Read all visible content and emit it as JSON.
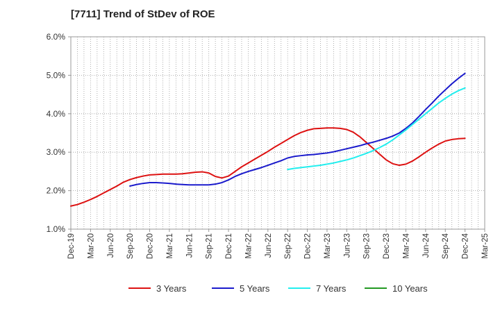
{
  "chart_data": {
    "type": "line",
    "title": "[7711]  Trend of StDev of ROE",
    "xlabel": "",
    "ylabel": "",
    "x_ticks": [
      "Dec-19",
      "Mar-20",
      "Jun-20",
      "Sep-20",
      "Dec-20",
      "Mar-21",
      "Jun-21",
      "Sep-21",
      "Dec-21",
      "Mar-22",
      "Jun-22",
      "Sep-22",
      "Dec-22",
      "Mar-23",
      "Jun-23",
      "Sep-23",
      "Dec-23",
      "Mar-24",
      "Jun-24",
      "Sep-24",
      "Dec-24",
      "Mar-25"
    ],
    "y_ticks": [
      "1.0%",
      "2.0%",
      "3.0%",
      "4.0%",
      "5.0%",
      "6.0%"
    ],
    "ylim": [
      1.0,
      6.0
    ],
    "grid": true,
    "legend_position": "bottom",
    "series": [
      {
        "name": "3 Years",
        "color": "#dd1111",
        "x": [
          "2019-12-31",
          "2020-01-31",
          "2020-02-29",
          "2020-03-31",
          "2020-04-30",
          "2020-05-31",
          "2020-06-30",
          "2020-07-31",
          "2020-08-31",
          "2020-09-30",
          "2020-10-31",
          "2020-11-30",
          "2020-12-31",
          "2021-01-31",
          "2021-02-28",
          "2021-03-31",
          "2021-04-30",
          "2021-05-31",
          "2021-06-30",
          "2021-07-31",
          "2021-08-31",
          "2021-09-30",
          "2021-10-31",
          "2021-11-30",
          "2021-12-31",
          "2022-01-31",
          "2022-02-28",
          "2022-03-31",
          "2022-04-30",
          "2022-05-31",
          "2022-06-30",
          "2022-07-31",
          "2022-08-31",
          "2022-09-30",
          "2022-10-31",
          "2022-11-30",
          "2022-12-31",
          "2023-01-31",
          "2023-02-28",
          "2023-03-31",
          "2023-04-30",
          "2023-05-31",
          "2023-06-30",
          "2023-07-31",
          "2023-08-31",
          "2023-09-30",
          "2023-10-31",
          "2023-11-30",
          "2023-12-31",
          "2024-01-31",
          "2024-02-29",
          "2024-03-31",
          "2024-04-30",
          "2024-05-31",
          "2024-06-30",
          "2024-07-31",
          "2024-08-31",
          "2024-09-30",
          "2024-10-31",
          "2024-11-30",
          "2024-12-31"
        ],
        "y": [
          1.6,
          1.64,
          1.7,
          1.77,
          1.85,
          1.94,
          2.03,
          2.12,
          2.22,
          2.29,
          2.34,
          2.38,
          2.41,
          2.42,
          2.43,
          2.43,
          2.43,
          2.44,
          2.46,
          2.48,
          2.49,
          2.46,
          2.37,
          2.33,
          2.38,
          2.5,
          2.62,
          2.72,
          2.82,
          2.92,
          3.02,
          3.13,
          3.23,
          3.33,
          3.43,
          3.51,
          3.57,
          3.61,
          3.62,
          3.63,
          3.63,
          3.62,
          3.59,
          3.52,
          3.4,
          3.25,
          3.1,
          2.95,
          2.8,
          2.7,
          2.66,
          2.69,
          2.77,
          2.88,
          3.0,
          3.11,
          3.21,
          3.29,
          3.33,
          3.35,
          3.36
        ]
      },
      {
        "name": "5 Years",
        "color": "#1a1acc",
        "x": [
          "2020-09-30",
          "2020-10-31",
          "2020-11-30",
          "2020-12-31",
          "2021-01-31",
          "2021-02-28",
          "2021-03-31",
          "2021-04-30",
          "2021-05-31",
          "2021-06-30",
          "2021-07-31",
          "2021-08-31",
          "2021-09-30",
          "2021-10-31",
          "2021-11-30",
          "2021-12-31",
          "2022-01-31",
          "2022-02-28",
          "2022-03-31",
          "2022-04-30",
          "2022-05-31",
          "2022-06-30",
          "2022-07-31",
          "2022-08-31",
          "2022-09-30",
          "2022-10-31",
          "2022-11-30",
          "2022-12-31",
          "2023-01-31",
          "2023-02-28",
          "2023-03-31",
          "2023-04-30",
          "2023-05-31",
          "2023-06-30",
          "2023-07-31",
          "2023-08-31",
          "2023-09-30",
          "2023-10-31",
          "2023-11-30",
          "2023-12-31",
          "2024-01-31",
          "2024-02-29",
          "2024-03-31",
          "2024-04-30",
          "2024-05-31",
          "2024-06-30",
          "2024-07-31",
          "2024-08-31",
          "2024-09-30",
          "2024-10-31",
          "2024-11-30",
          "2024-12-31"
        ],
        "y": [
          2.12,
          2.16,
          2.19,
          2.21,
          2.21,
          2.2,
          2.19,
          2.17,
          2.16,
          2.15,
          2.15,
          2.15,
          2.15,
          2.17,
          2.21,
          2.28,
          2.37,
          2.44,
          2.5,
          2.55,
          2.6,
          2.66,
          2.72,
          2.78,
          2.85,
          2.89,
          2.91,
          2.93,
          2.94,
          2.96,
          2.98,
          3.01,
          3.05,
          3.09,
          3.13,
          3.17,
          3.22,
          3.26,
          3.31,
          3.36,
          3.42,
          3.5,
          3.62,
          3.76,
          3.93,
          4.11,
          4.28,
          4.46,
          4.62,
          4.78,
          4.92,
          5.05
        ]
      },
      {
        "name": "7 Years",
        "color": "#22eeee",
        "x": [
          "2022-09-30",
          "2022-10-31",
          "2022-11-30",
          "2022-12-31",
          "2023-01-31",
          "2023-02-28",
          "2023-03-31",
          "2023-04-30",
          "2023-05-31",
          "2023-06-30",
          "2023-07-31",
          "2023-08-31",
          "2023-09-30",
          "2023-10-31",
          "2023-11-30",
          "2023-12-31",
          "2024-01-31",
          "2024-02-29",
          "2024-03-31",
          "2024-04-30",
          "2024-05-31",
          "2024-06-30",
          "2024-07-31",
          "2024-08-31",
          "2024-09-30",
          "2024-10-31",
          "2024-11-30",
          "2024-12-31"
        ],
        "y": [
          2.55,
          2.58,
          2.6,
          2.62,
          2.64,
          2.66,
          2.69,
          2.72,
          2.76,
          2.8,
          2.85,
          2.91,
          2.97,
          3.04,
          3.12,
          3.21,
          3.32,
          3.45,
          3.58,
          3.72,
          3.86,
          4.0,
          4.14,
          4.28,
          4.4,
          4.51,
          4.6,
          4.67
        ]
      },
      {
        "name": "10 Years",
        "color": "#229922",
        "x": [],
        "y": []
      }
    ]
  }
}
